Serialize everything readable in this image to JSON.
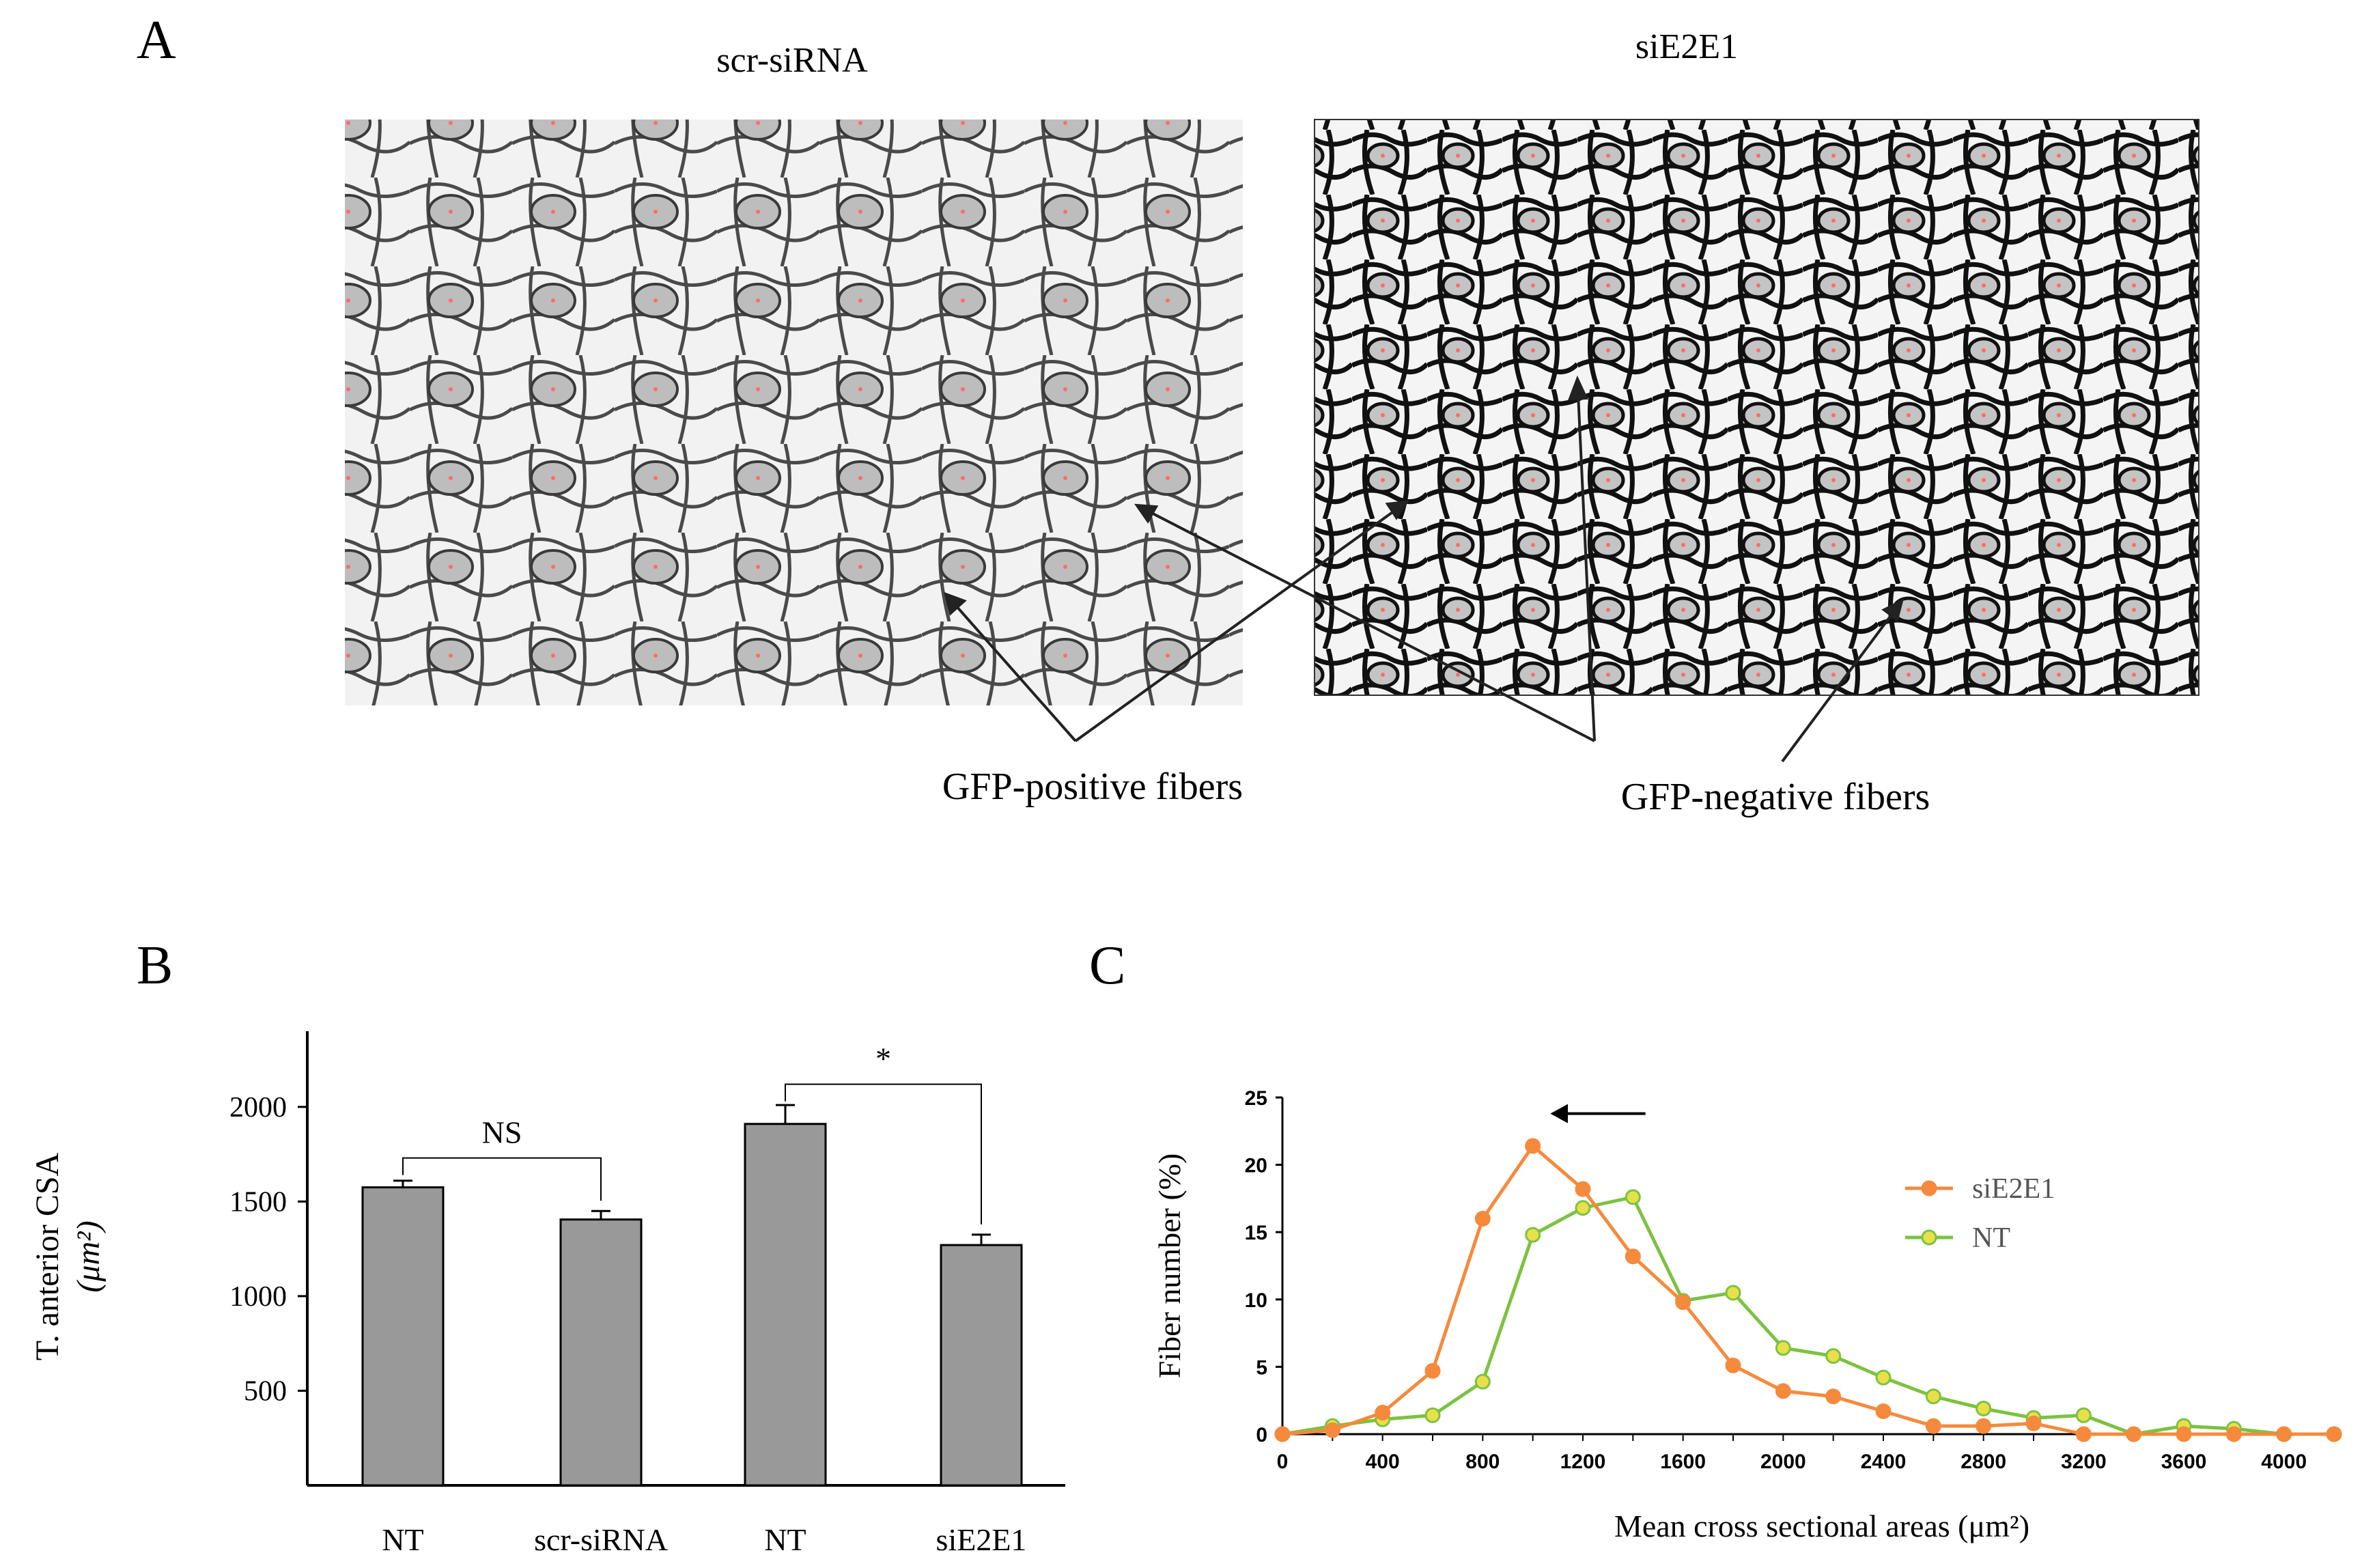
{
  "panel_a": {
    "letter": "A",
    "left_title": "scr-siRNA",
    "right_title": "siE2E1",
    "annotation_positive": "GFP-positive fibers",
    "annotation_negative": "GFP-negative fibers"
  },
  "chart_data": [
    {
      "type": "bar",
      "panel": "B",
      "title": "",
      "ylabel": "T. anterior CSA",
      "ylabel_unit": "(μm²)",
      "xlabel": "",
      "categories": [
        "NT",
        "scr-siRNA",
        "NT",
        "siE2E1"
      ],
      "values": [
        1575,
        1405,
        1910,
        1270
      ],
      "errors": [
        35,
        45,
        100,
        55
      ],
      "ylim": [
        0,
        2400
      ],
      "yticks": [
        500,
        1000,
        1500,
        2000
      ],
      "bar_color": "#999999",
      "significance": [
        {
          "pair": [
            0,
            1
          ],
          "label": "NS"
        },
        {
          "pair": [
            2,
            3
          ],
          "label": "*"
        }
      ]
    },
    {
      "type": "line",
      "panel": "C",
      "title": "",
      "xlabel": "Mean cross sectional areas (μm²)",
      "ylabel": "Fiber number (%)",
      "xlim": [
        0,
        4200
      ],
      "ylim": [
        0,
        25
      ],
      "xticks": [
        0,
        400,
        800,
        1200,
        1600,
        2000,
        2400,
        2800,
        3200,
        3600,
        4000
      ],
      "yticks": [
        0,
        5,
        10,
        15,
        20,
        25
      ],
      "x": [
        0,
        200,
        400,
        600,
        800,
        1000,
        1200,
        1400,
        1600,
        1800,
        2000,
        2200,
        2400,
        2600,
        2800,
        3000,
        3200,
        3400,
        3600,
        3800,
        4000,
        4200
      ],
      "series": [
        {
          "name": "siE2E1",
          "color": "#f58a3c",
          "marker_fill": "#f58a3c",
          "values": [
            0,
            0.3,
            1.6,
            4.7,
            16.0,
            21.4,
            18.2,
            13.2,
            9.8,
            5.1,
            3.2,
            2.8,
            1.7,
            0.6,
            0.6,
            0.8,
            0.0,
            0.0,
            0.0,
            0.0,
            0.0,
            0.0
          ]
        },
        {
          "name": "NT",
          "color": "#7cc242",
          "marker_fill": "#e8e04a",
          "values": [
            0,
            0.6,
            1.1,
            1.4,
            3.9,
            14.8,
            16.8,
            17.6,
            9.9,
            10.5,
            6.4,
            5.8,
            4.2,
            2.8,
            1.9,
            1.2,
            1.4,
            0.0,
            0.6,
            0.4,
            0.0,
            0.0
          ]
        }
      ],
      "shift_arrow_direction": "left"
    }
  ]
}
